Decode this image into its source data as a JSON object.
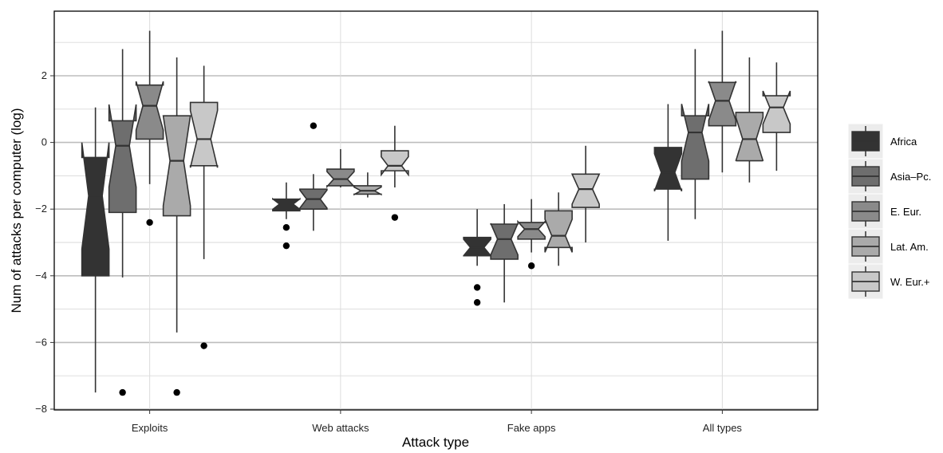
{
  "chart_data": {
    "type": "box",
    "notched": true,
    "xlabel": "Attack type",
    "ylabel": "Num of attacks per computer (log)",
    "ylim": [
      -8.1,
      3.9
    ],
    "yticks": [
      2,
      0,
      -2,
      -4,
      -6,
      -8
    ],
    "grid": true,
    "legend_position": "right",
    "categories": [
      "Exploits",
      "Web attacks",
      "Fake apps",
      "All types"
    ],
    "series": [
      {
        "name": "Africa",
        "color": "#333333",
        "boxes": [
          {
            "whisker_low": -7.5,
            "q1": -4.0,
            "median": -1.6,
            "q3": -0.45,
            "whisker_high": 1.05,
            "outliers": []
          },
          {
            "whisker_low": -2.3,
            "q1": -2.05,
            "median": -1.85,
            "q3": -1.7,
            "whisker_high": -1.2,
            "outliers": [
              -2.55,
              -3.1
            ]
          },
          {
            "whisker_low": -3.7,
            "q1": -3.4,
            "median": -3.15,
            "q3": -2.85,
            "whisker_high": -2.0,
            "outliers": [
              -4.35,
              -4.8
            ]
          },
          {
            "whisker_low": -2.95,
            "q1": -1.4,
            "median": -0.9,
            "q3": -0.15,
            "whisker_high": 1.15,
            "outliers": []
          }
        ]
      },
      {
        "name": "Asia–Pc.",
        "color": "#6e6e6e",
        "boxes": [
          {
            "whisker_low": -4.05,
            "q1": -2.1,
            "median": -0.1,
            "q3": 0.65,
            "whisker_high": 2.8,
            "outliers": [
              -7.5
            ]
          },
          {
            "whisker_low": -2.65,
            "q1": -2.0,
            "median": -1.7,
            "q3": -1.4,
            "whisker_high": -0.95,
            "outliers": [
              0.5
            ]
          },
          {
            "whisker_low": -4.8,
            "q1": -3.5,
            "median": -2.9,
            "q3": -2.45,
            "whisker_high": -1.85,
            "outliers": []
          },
          {
            "whisker_low": -2.3,
            "q1": -1.1,
            "median": 0.3,
            "q3": 0.8,
            "whisker_high": 2.8,
            "outliers": []
          }
        ]
      },
      {
        "name": "E. Eur.",
        "color": "#8a8a8a",
        "boxes": [
          {
            "whisker_low": -1.25,
            "q1": 0.1,
            "median": 1.1,
            "q3": 1.72,
            "whisker_high": 3.35,
            "outliers": [
              -2.4
            ]
          },
          {
            "whisker_low": -1.35,
            "q1": -1.3,
            "median": -1.1,
            "q3": -0.8,
            "whisker_high": -0.2,
            "outliers": []
          },
          {
            "whisker_low": -3.3,
            "q1": -2.9,
            "median": -2.6,
            "q3": -2.4,
            "whisker_high": -1.7,
            "outliers": [
              -3.7
            ]
          },
          {
            "whisker_low": -0.9,
            "q1": 0.5,
            "median": 1.25,
            "q3": 1.8,
            "whisker_high": 3.35,
            "outliers": []
          }
        ]
      },
      {
        "name": "Lat. Am.",
        "color": "#aaaaaa",
        "boxes": [
          {
            "whisker_low": -5.7,
            "q1": -2.2,
            "median": -0.55,
            "q3": 0.8,
            "whisker_high": 2.55,
            "outliers": [
              -7.5
            ]
          },
          {
            "whisker_low": -1.65,
            "q1": -1.55,
            "median": -1.45,
            "q3": -1.3,
            "whisker_high": -0.9,
            "outliers": []
          },
          {
            "whisker_low": -3.7,
            "q1": -3.15,
            "median": -2.8,
            "q3": -2.05,
            "whisker_high": -1.5,
            "outliers": []
          },
          {
            "whisker_low": -1.2,
            "q1": -0.55,
            "median": 0.1,
            "q3": 0.9,
            "whisker_high": 2.55,
            "outliers": []
          }
        ]
      },
      {
        "name": "W. Eur.+",
        "color": "#c8c8c8",
        "boxes": [
          {
            "whisker_low": -3.5,
            "q1": -0.7,
            "median": 0.1,
            "q3": 1.2,
            "whisker_high": 2.3,
            "outliers": [
              -6.1
            ]
          },
          {
            "whisker_low": -1.35,
            "q1": -0.85,
            "median": -0.7,
            "q3": -0.25,
            "whisker_high": 0.5,
            "outliers": [
              -2.25
            ]
          },
          {
            "whisker_low": -3.0,
            "q1": -1.95,
            "median": -1.4,
            "q3": -0.95,
            "whisker_high": -0.1,
            "outliers": []
          },
          {
            "whisker_low": -0.85,
            "q1": 0.3,
            "median": 1.05,
            "q3": 1.4,
            "whisker_high": 2.4,
            "outliers": []
          }
        ]
      }
    ]
  }
}
